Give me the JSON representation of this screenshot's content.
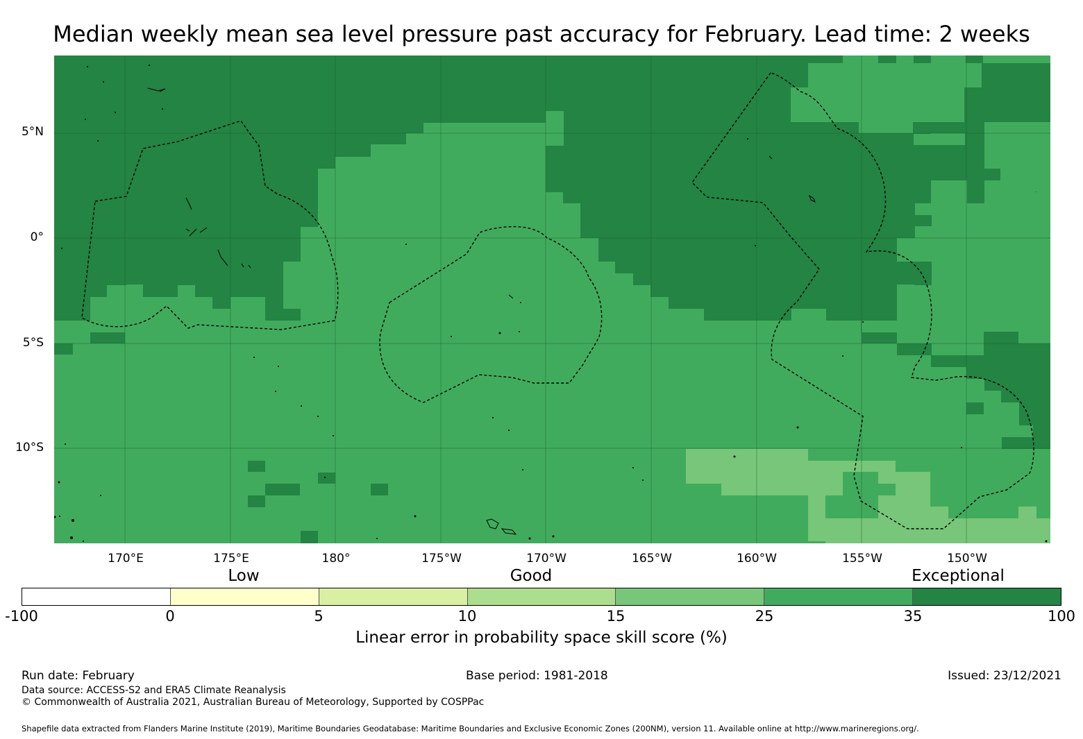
{
  "title": "Median weekly mean sea level pressure past accuracy for February. Lead time: 2 weeks",
  "map": {
    "region": "Central Pacific",
    "lat_labels": [
      "5°N",
      "0°",
      "5°S",
      "10°S"
    ],
    "lon_labels": [
      "170°E",
      "175°E",
      "180°",
      "175°W",
      "170°W",
      "165°W",
      "160°W",
      "155°W",
      "150°W"
    ],
    "colors": {
      "35-100": "#238443",
      "25-35": "#41ab5d",
      "15-25": "#78c679",
      "10-15": "#addd8e",
      "5-10": "#d9f0a3",
      "0-5": "#ffffcc",
      "-100-0": "#ffffff"
    }
  },
  "colorbar": {
    "categories": [
      "Low",
      "Good",
      "Exceptional"
    ],
    "ticks": [
      "-100",
      "0",
      "5",
      "10",
      "15",
      "25",
      "35",
      "100"
    ],
    "colors": [
      "#ffffff",
      "#ffffcc",
      "#d9f0a3",
      "#addd8e",
      "#78c679",
      "#41ab5d",
      "#238443"
    ],
    "label": "Linear error in probability space skill score (%)"
  },
  "footer": {
    "run_date": "Run date: February",
    "base_period": "Base period: 1981-2018",
    "issued": "Issued: 23/12/2021",
    "data_source": "Data source: ACCESS-S2 and ERA5 Climate Reanalysis",
    "copyright": "© Commonwealth of Australia 2021, Australian Bureau of Meteorology, Supported by COSPPac",
    "shapefile": "Shapefile data extracted from Flanders Marine Institute (2019), Maritime Boundaries Geodatabase: Maritime Boundaries and Exclusive Economic Zones (200NM), version 11. Available online at http://www.marineregions.org/."
  }
}
